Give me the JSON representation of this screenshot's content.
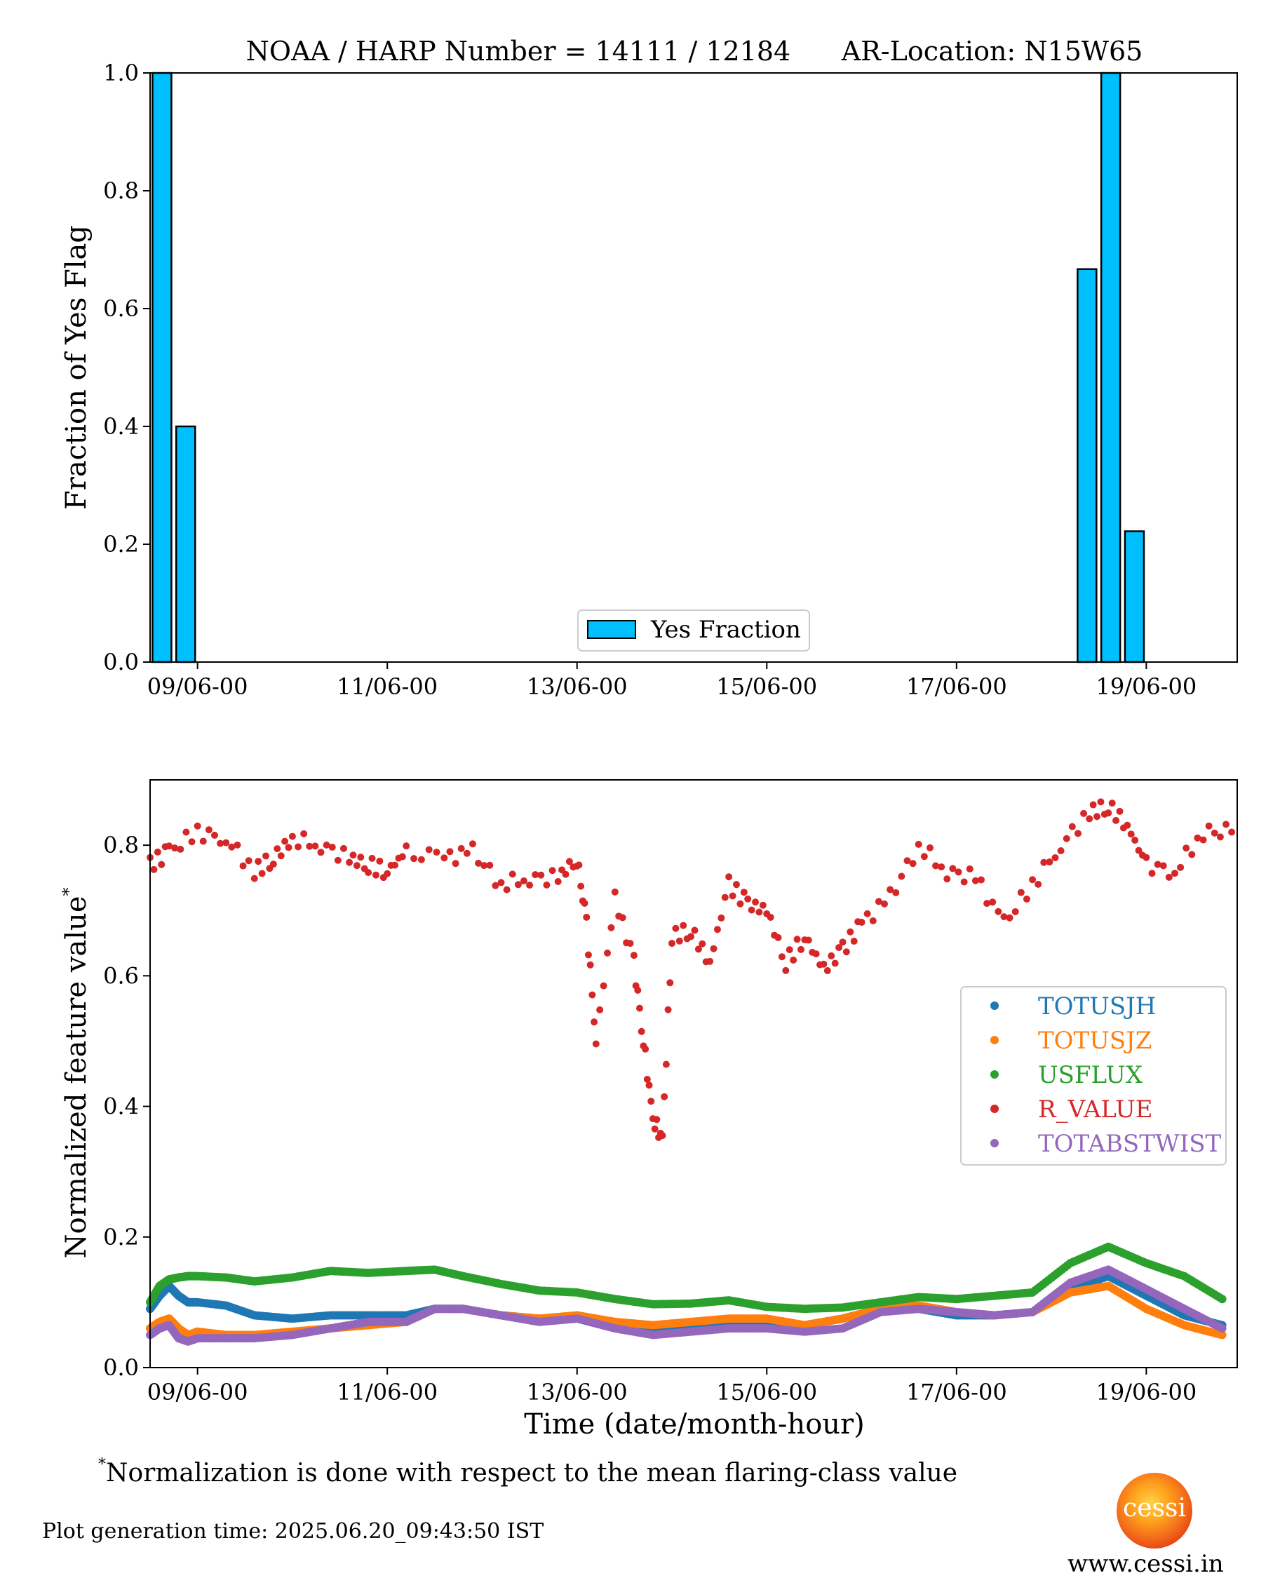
{
  "chart_data": [
    {
      "type": "bar",
      "title": "NOAA / HARP Number = 14111 / 12184      AR-Location: N15W65",
      "ylabel": "Fraction of Yes Flag",
      "xlabel": "",
      "xlim": [
        "08/06-12",
        "19/06-23"
      ],
      "ylim": [
        0,
        1.0
      ],
      "x_ticks": [
        "09/06-00",
        "11/06-00",
        "13/06-00",
        "15/06-00",
        "17/06-00",
        "19/06-00"
      ],
      "y_ticks": [
        "0.0",
        "0.2",
        "0.4",
        "0.6",
        "0.8",
        "1.0"
      ],
      "legend": {
        "position": "lower-center",
        "entries": [
          "Yes Fraction"
        ]
      },
      "grid": false,
      "bar_color": "#00bfff",
      "bars": [
        {
          "x": "08/06-12",
          "value": 1.0
        },
        {
          "x": "08/06-18",
          "value": 0.4
        },
        {
          "x": "18/06-06",
          "value": 0.667
        },
        {
          "x": "18/06-12",
          "value": 1.0
        },
        {
          "x": "18/06-18",
          "value": 0.222
        }
      ]
    },
    {
      "type": "scatter",
      "ylabel": "Normalized feature value",
      "ylabel_mark": "*",
      "xlabel": "Time (date/month-hour)",
      "xlim": [
        "08/06-12",
        "19/06-23"
      ],
      "ylim": [
        0,
        0.9
      ],
      "x_ticks": [
        "09/06-00",
        "11/06-00",
        "13/06-00",
        "15/06-00",
        "17/06-00",
        "19/06-00"
      ],
      "y_ticks": [
        "0.0",
        "0.2",
        "0.4",
        "0.6",
        "0.8"
      ],
      "legend": {
        "position": "right"
      },
      "grid": false,
      "series": [
        {
          "name": "TOTUSJH",
          "color": "#1f77b4",
          "x": [
            8.5,
            8.6,
            8.7,
            8.8,
            8.9,
            9.0,
            9.3,
            9.6,
            10.0,
            10.4,
            10.8,
            11.2,
            11.5,
            11.8,
            12.2,
            12.6,
            13.0,
            13.4,
            13.8,
            14.2,
            14.6,
            15.0,
            15.4,
            15.8,
            16.2,
            16.6,
            17.0,
            17.4,
            17.8,
            18.2,
            18.6,
            19.0,
            19.4,
            19.8
          ],
          "y": [
            0.09,
            0.11,
            0.125,
            0.11,
            0.1,
            0.1,
            0.095,
            0.08,
            0.075,
            0.08,
            0.08,
            0.08,
            0.09,
            0.09,
            0.08,
            0.075,
            0.075,
            0.065,
            0.06,
            0.06,
            0.07,
            0.07,
            0.065,
            0.075,
            0.09,
            0.09,
            0.08,
            0.08,
            0.085,
            0.12,
            0.14,
            0.11,
            0.08,
            0.065
          ]
        },
        {
          "name": "TOTUSJZ",
          "color": "#ff7f0e",
          "x": [
            8.5,
            8.6,
            8.7,
            8.8,
            8.9,
            9.0,
            9.3,
            9.6,
            10.0,
            10.4,
            10.8,
            11.2,
            11.5,
            11.8,
            12.2,
            12.6,
            13.0,
            13.4,
            13.8,
            14.2,
            14.6,
            15.0,
            15.4,
            15.8,
            16.2,
            16.6,
            17.0,
            17.4,
            17.8,
            18.2,
            18.6,
            19.0,
            19.4,
            19.8
          ],
          "y": [
            0.06,
            0.07,
            0.075,
            0.06,
            0.05,
            0.055,
            0.05,
            0.05,
            0.055,
            0.06,
            0.065,
            0.07,
            0.09,
            0.09,
            0.08,
            0.075,
            0.08,
            0.07,
            0.065,
            0.07,
            0.075,
            0.075,
            0.065,
            0.075,
            0.09,
            0.095,
            0.085,
            0.08,
            0.085,
            0.115,
            0.125,
            0.09,
            0.065,
            0.05
          ]
        },
        {
          "name": "USFLUX",
          "color": "#2ca02c",
          "x": [
            8.5,
            8.6,
            8.7,
            8.8,
            8.9,
            9.0,
            9.3,
            9.6,
            10.0,
            10.4,
            10.8,
            11.2,
            11.5,
            11.8,
            12.2,
            12.6,
            13.0,
            13.4,
            13.8,
            14.2,
            14.6,
            15.0,
            15.4,
            15.8,
            16.2,
            16.6,
            17.0,
            17.4,
            17.8,
            18.2,
            18.6,
            19.0,
            19.4,
            19.8
          ],
          "y": [
            0.1,
            0.125,
            0.135,
            0.138,
            0.14,
            0.14,
            0.138,
            0.132,
            0.138,
            0.148,
            0.145,
            0.148,
            0.15,
            0.14,
            0.128,
            0.118,
            0.115,
            0.105,
            0.097,
            0.098,
            0.103,
            0.093,
            0.09,
            0.092,
            0.1,
            0.108,
            0.105,
            0.11,
            0.115,
            0.16,
            0.185,
            0.16,
            0.14,
            0.105
          ]
        },
        {
          "name": "R_VALUE",
          "color": "#d62728",
          "x": [
            8.5,
            8.7,
            9.0,
            9.3,
            9.6,
            9.8,
            10.0,
            10.3,
            10.6,
            10.8,
            11.0,
            11.2,
            11.6,
            11.9,
            12.2,
            12.5,
            12.8,
            13.0,
            13.1,
            13.2,
            13.4,
            13.6,
            13.7,
            13.8,
            13.9,
            14.0,
            14.2,
            14.4,
            14.6,
            14.8,
            15.0,
            15.2,
            15.4,
            15.6,
            15.8,
            16.0,
            16.3,
            16.6,
            16.9,
            17.2,
            17.5,
            17.8,
            18.1,
            18.4,
            18.6,
            18.8,
            19.0,
            19.3,
            19.6,
            19.9
          ],
          "y": [
            0.77,
            0.79,
            0.82,
            0.81,
            0.76,
            0.78,
            0.81,
            0.8,
            0.78,
            0.77,
            0.76,
            0.79,
            0.78,
            0.79,
            0.74,
            0.75,
            0.75,
            0.78,
            0.68,
            0.5,
            0.72,
            0.62,
            0.5,
            0.38,
            0.35,
            0.66,
            0.67,
            0.62,
            0.74,
            0.71,
            0.7,
            0.62,
            0.66,
            0.61,
            0.64,
            0.68,
            0.72,
            0.8,
            0.76,
            0.75,
            0.68,
            0.74,
            0.8,
            0.85,
            0.86,
            0.83,
            0.77,
            0.76,
            0.82,
            0.82
          ]
        },
        {
          "name": "TOTABSTWIST",
          "color": "#9467bd",
          "x": [
            8.5,
            8.6,
            8.7,
            8.8,
            8.9,
            9.0,
            9.3,
            9.6,
            10.0,
            10.4,
            10.8,
            11.2,
            11.5,
            11.8,
            12.2,
            12.6,
            13.0,
            13.4,
            13.8,
            14.2,
            14.6,
            15.0,
            15.4,
            15.8,
            16.2,
            16.6,
            17.0,
            17.4,
            17.8,
            18.2,
            18.6,
            19.0,
            19.4,
            19.8
          ],
          "y": [
            0.05,
            0.06,
            0.065,
            0.045,
            0.04,
            0.045,
            0.045,
            0.045,
            0.05,
            0.06,
            0.07,
            0.07,
            0.09,
            0.09,
            0.08,
            0.07,
            0.075,
            0.06,
            0.05,
            0.055,
            0.06,
            0.06,
            0.055,
            0.06,
            0.085,
            0.09,
            0.085,
            0.08,
            0.085,
            0.13,
            0.15,
            0.12,
            0.09,
            0.06
          ]
        }
      ]
    }
  ],
  "footnote": {
    "mark": "*",
    "text": "Normalization is done with respect to the mean flaring-class value"
  },
  "generation_time": "Plot generation time: 2025.06.20_09:43:50 IST",
  "logo": {
    "text": "cessi",
    "url": "www.cessi.in"
  }
}
